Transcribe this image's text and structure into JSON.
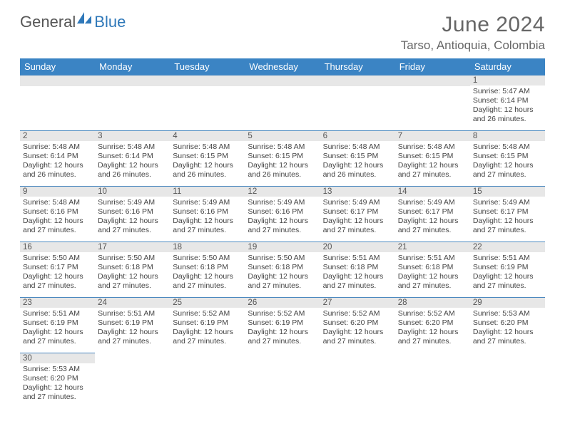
{
  "brand": {
    "part1": "General",
    "part2": "Blue"
  },
  "header": {
    "title": "June 2024",
    "location": "Tarso, Antioquia, Colombia"
  },
  "dayNames": [
    "Sunday",
    "Monday",
    "Tuesday",
    "Wednesday",
    "Thursday",
    "Friday",
    "Saturday"
  ],
  "colors": {
    "header_bg": "#3b84c4",
    "header_text": "#ffffff",
    "daynum_bg": "#e7e7e7",
    "divider": "#4a88bf",
    "body_text": "#444444",
    "brand_blue": "#2f78b9",
    "brand_gray": "#555555",
    "page_bg": "#ffffff"
  },
  "layout": {
    "cols": 7,
    "rows": 6,
    "first_weekday_index": 6,
    "days_in_month": 30
  },
  "typography": {
    "title_size": 30,
    "location_size": 17,
    "dayhead_size": 13,
    "body_size": 10.5
  },
  "labels": {
    "sunrise": "Sunrise:",
    "sunset": "Sunset:",
    "daylight": "Daylight:"
  },
  "days": [
    {
      "n": 1,
      "sunrise": "5:47 AM",
      "sunset": "6:14 PM",
      "daylight": "12 hours and 26 minutes."
    },
    {
      "n": 2,
      "sunrise": "5:48 AM",
      "sunset": "6:14 PM",
      "daylight": "12 hours and 26 minutes."
    },
    {
      "n": 3,
      "sunrise": "5:48 AM",
      "sunset": "6:14 PM",
      "daylight": "12 hours and 26 minutes."
    },
    {
      "n": 4,
      "sunrise": "5:48 AM",
      "sunset": "6:15 PM",
      "daylight": "12 hours and 26 minutes."
    },
    {
      "n": 5,
      "sunrise": "5:48 AM",
      "sunset": "6:15 PM",
      "daylight": "12 hours and 26 minutes."
    },
    {
      "n": 6,
      "sunrise": "5:48 AM",
      "sunset": "6:15 PM",
      "daylight": "12 hours and 26 minutes."
    },
    {
      "n": 7,
      "sunrise": "5:48 AM",
      "sunset": "6:15 PM",
      "daylight": "12 hours and 27 minutes."
    },
    {
      "n": 8,
      "sunrise": "5:48 AM",
      "sunset": "6:15 PM",
      "daylight": "12 hours and 27 minutes."
    },
    {
      "n": 9,
      "sunrise": "5:48 AM",
      "sunset": "6:16 PM",
      "daylight": "12 hours and 27 minutes."
    },
    {
      "n": 10,
      "sunrise": "5:49 AM",
      "sunset": "6:16 PM",
      "daylight": "12 hours and 27 minutes."
    },
    {
      "n": 11,
      "sunrise": "5:49 AM",
      "sunset": "6:16 PM",
      "daylight": "12 hours and 27 minutes."
    },
    {
      "n": 12,
      "sunrise": "5:49 AM",
      "sunset": "6:16 PM",
      "daylight": "12 hours and 27 minutes."
    },
    {
      "n": 13,
      "sunrise": "5:49 AM",
      "sunset": "6:17 PM",
      "daylight": "12 hours and 27 minutes."
    },
    {
      "n": 14,
      "sunrise": "5:49 AM",
      "sunset": "6:17 PM",
      "daylight": "12 hours and 27 minutes."
    },
    {
      "n": 15,
      "sunrise": "5:49 AM",
      "sunset": "6:17 PM",
      "daylight": "12 hours and 27 minutes."
    },
    {
      "n": 16,
      "sunrise": "5:50 AM",
      "sunset": "6:17 PM",
      "daylight": "12 hours and 27 minutes."
    },
    {
      "n": 17,
      "sunrise": "5:50 AM",
      "sunset": "6:18 PM",
      "daylight": "12 hours and 27 minutes."
    },
    {
      "n": 18,
      "sunrise": "5:50 AM",
      "sunset": "6:18 PM",
      "daylight": "12 hours and 27 minutes."
    },
    {
      "n": 19,
      "sunrise": "5:50 AM",
      "sunset": "6:18 PM",
      "daylight": "12 hours and 27 minutes."
    },
    {
      "n": 20,
      "sunrise": "5:51 AM",
      "sunset": "6:18 PM",
      "daylight": "12 hours and 27 minutes."
    },
    {
      "n": 21,
      "sunrise": "5:51 AM",
      "sunset": "6:18 PM",
      "daylight": "12 hours and 27 minutes."
    },
    {
      "n": 22,
      "sunrise": "5:51 AM",
      "sunset": "6:19 PM",
      "daylight": "12 hours and 27 minutes."
    },
    {
      "n": 23,
      "sunrise": "5:51 AM",
      "sunset": "6:19 PM",
      "daylight": "12 hours and 27 minutes."
    },
    {
      "n": 24,
      "sunrise": "5:51 AM",
      "sunset": "6:19 PM",
      "daylight": "12 hours and 27 minutes."
    },
    {
      "n": 25,
      "sunrise": "5:52 AM",
      "sunset": "6:19 PM",
      "daylight": "12 hours and 27 minutes."
    },
    {
      "n": 26,
      "sunrise": "5:52 AM",
      "sunset": "6:19 PM",
      "daylight": "12 hours and 27 minutes."
    },
    {
      "n": 27,
      "sunrise": "5:52 AM",
      "sunset": "6:20 PM",
      "daylight": "12 hours and 27 minutes."
    },
    {
      "n": 28,
      "sunrise": "5:52 AM",
      "sunset": "6:20 PM",
      "daylight": "12 hours and 27 minutes."
    },
    {
      "n": 29,
      "sunrise": "5:53 AM",
      "sunset": "6:20 PM",
      "daylight": "12 hours and 27 minutes."
    },
    {
      "n": 30,
      "sunrise": "5:53 AM",
      "sunset": "6:20 PM",
      "daylight": "12 hours and 27 minutes."
    }
  ]
}
